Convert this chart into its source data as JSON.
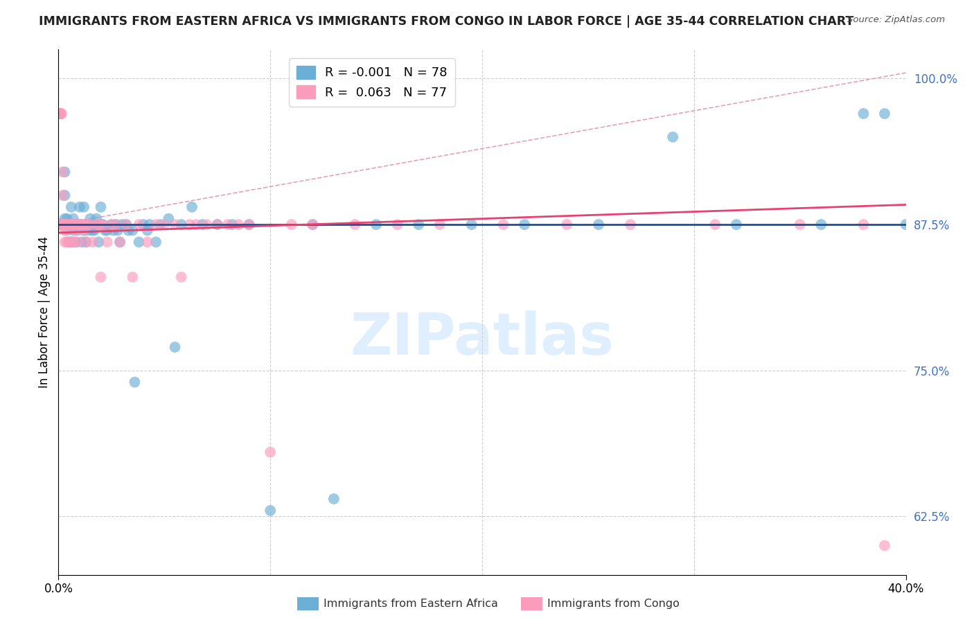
{
  "title": "IMMIGRANTS FROM EASTERN AFRICA VS IMMIGRANTS FROM CONGO IN LABOR FORCE | AGE 35-44 CORRELATION CHART",
  "source": "Source: ZipAtlas.com",
  "ylabel": "In Labor Force | Age 35-44",
  "xmin": 0.0,
  "xmax": 0.4,
  "ymin": 0.575,
  "ymax": 1.025,
  "legend_blue_label": "Immigrants from Eastern Africa",
  "legend_pink_label": "Immigrants from Congo",
  "R_blue": -0.001,
  "N_blue": 78,
  "R_pink": 0.063,
  "N_pink": 77,
  "blue_color": "#6baed6",
  "pink_color": "#fc9cbd",
  "blue_line_color": "#1f4e96",
  "pink_line_color": "#e84070",
  "dash_line_color": "#e8a0b0",
  "watermark_text": "ZIPatlas",
  "blue_x": [
    0.001,
    0.002,
    0.003,
    0.003,
    0.003,
    0.004,
    0.004,
    0.005,
    0.005,
    0.005,
    0.006,
    0.006,
    0.006,
    0.007,
    0.007,
    0.007,
    0.008,
    0.008,
    0.009,
    0.009,
    0.01,
    0.01,
    0.011,
    0.011,
    0.012,
    0.012,
    0.013,
    0.013,
    0.014,
    0.015,
    0.015,
    0.016,
    0.017,
    0.017,
    0.018,
    0.019,
    0.02,
    0.021,
    0.022,
    0.023,
    0.025,
    0.026,
    0.027,
    0.028,
    0.029,
    0.03,
    0.032,
    0.033,
    0.035,
    0.036,
    0.038,
    0.04,
    0.042,
    0.043,
    0.046,
    0.048,
    0.052,
    0.055,
    0.058,
    0.063,
    0.068,
    0.075,
    0.082,
    0.09,
    0.1,
    0.12,
    0.13,
    0.15,
    0.17,
    0.195,
    0.22,
    0.255,
    0.29,
    0.32,
    0.36,
    0.38,
    0.39,
    0.4
  ],
  "blue_y": [
    0.875,
    0.875,
    0.92,
    0.88,
    0.9,
    0.87,
    0.88,
    0.86,
    0.875,
    0.875,
    0.86,
    0.875,
    0.89,
    0.87,
    0.875,
    0.88,
    0.86,
    0.875,
    0.875,
    0.87,
    0.875,
    0.89,
    0.875,
    0.86,
    0.89,
    0.87,
    0.875,
    0.86,
    0.87,
    0.875,
    0.88,
    0.87,
    0.875,
    0.87,
    0.88,
    0.86,
    0.89,
    0.875,
    0.87,
    0.87,
    0.875,
    0.87,
    0.875,
    0.87,
    0.86,
    0.875,
    0.875,
    0.87,
    0.87,
    0.74,
    0.86,
    0.875,
    0.87,
    0.875,
    0.86,
    0.875,
    0.88,
    0.77,
    0.875,
    0.89,
    0.875,
    0.875,
    0.875,
    0.875,
    0.63,
    0.875,
    0.64,
    0.875,
    0.875,
    0.875,
    0.875,
    0.875,
    0.95,
    0.875,
    0.875,
    0.97,
    0.97,
    0.875
  ],
  "pink_x": [
    0.0005,
    0.001,
    0.001,
    0.001,
    0.001,
    0.0015,
    0.002,
    0.002,
    0.002,
    0.002,
    0.002,
    0.003,
    0.003,
    0.003,
    0.003,
    0.004,
    0.004,
    0.004,
    0.005,
    0.005,
    0.005,
    0.006,
    0.006,
    0.006,
    0.007,
    0.007,
    0.007,
    0.008,
    0.008,
    0.009,
    0.009,
    0.01,
    0.01,
    0.011,
    0.012,
    0.012,
    0.013,
    0.013,
    0.014,
    0.015,
    0.016,
    0.018,
    0.019,
    0.02,
    0.021,
    0.023,
    0.025,
    0.027,
    0.029,
    0.032,
    0.035,
    0.038,
    0.042,
    0.046,
    0.05,
    0.055,
    0.058,
    0.062,
    0.065,
    0.07,
    0.075,
    0.08,
    0.085,
    0.09,
    0.1,
    0.11,
    0.12,
    0.14,
    0.16,
    0.18,
    0.21,
    0.24,
    0.27,
    0.31,
    0.35,
    0.38,
    0.39
  ],
  "pink_y": [
    0.875,
    0.97,
    0.97,
    0.97,
    0.97,
    0.97,
    0.875,
    0.875,
    0.9,
    0.875,
    0.92,
    0.875,
    0.87,
    0.875,
    0.86,
    0.875,
    0.875,
    0.86,
    0.875,
    0.875,
    0.86,
    0.875,
    0.86,
    0.875,
    0.875,
    0.86,
    0.875,
    0.875,
    0.87,
    0.875,
    0.86,
    0.875,
    0.875,
    0.875,
    0.87,
    0.875,
    0.86,
    0.875,
    0.875,
    0.875,
    0.86,
    0.875,
    0.875,
    0.83,
    0.875,
    0.86,
    0.875,
    0.875,
    0.86,
    0.875,
    0.83,
    0.875,
    0.86,
    0.875,
    0.875,
    0.875,
    0.83,
    0.875,
    0.875,
    0.875,
    0.875,
    0.875,
    0.875,
    0.875,
    0.68,
    0.875,
    0.875,
    0.875,
    0.875,
    0.875,
    0.875,
    0.875,
    0.875,
    0.875,
    0.875,
    0.875,
    0.6
  ],
  "ytick_vals": [
    1.0,
    0.875,
    0.75,
    0.625
  ],
  "ytick_labels": [
    "100.0%",
    "87.5%",
    "75.0%",
    "62.5%"
  ]
}
